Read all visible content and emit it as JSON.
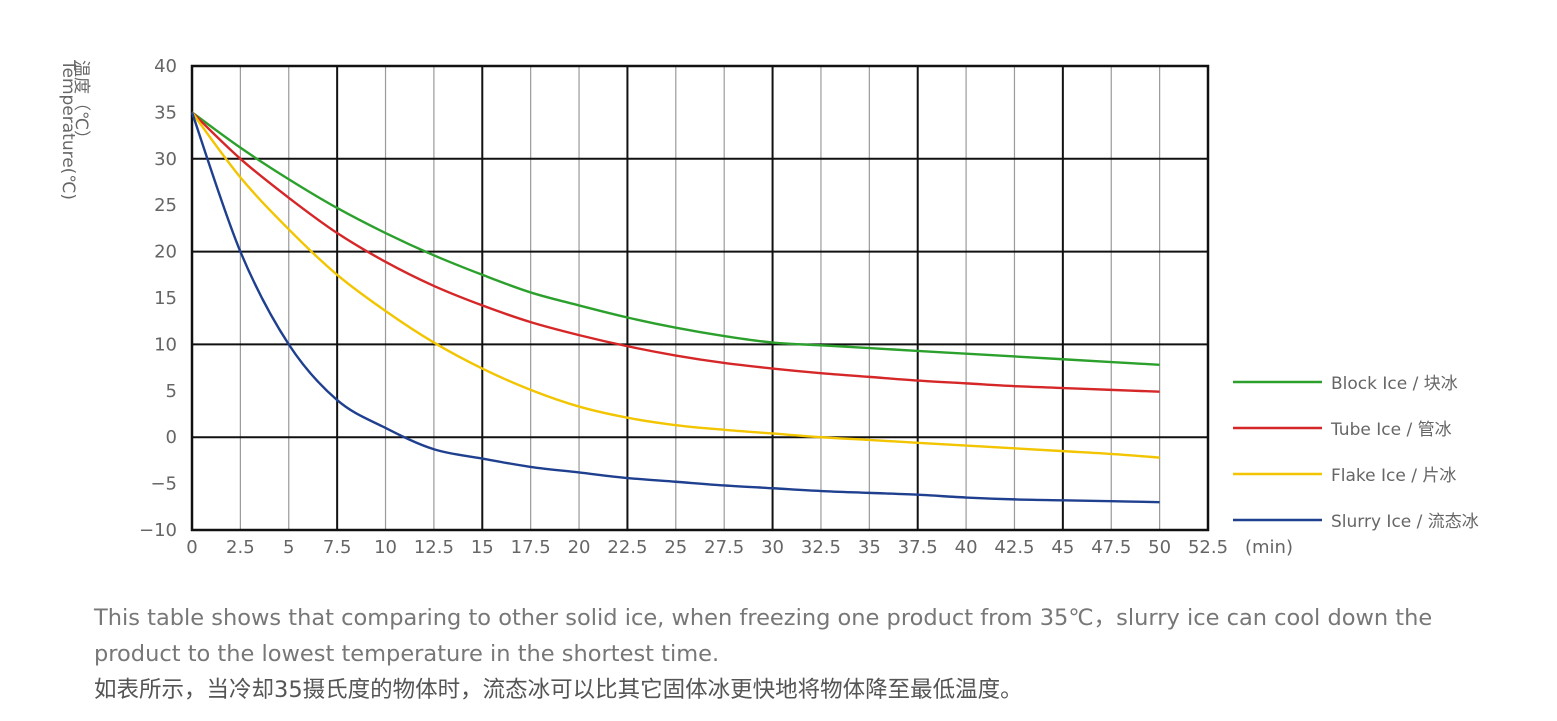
{
  "chart_data": {
    "type": "line",
    "ylabel_zh": "温度（℃）",
    "ylabel_en": "Temperature(℃)",
    "xunit": "(min)",
    "xlim": [
      0,
      52.5
    ],
    "ylim": [
      -10,
      40
    ],
    "x_ticks": [
      "0",
      "2.5",
      "5",
      "7.5",
      "10",
      "12.5",
      "15",
      "17.5",
      "20",
      "22.5",
      "25",
      "27.5",
      "30",
      "32.5",
      "35",
      "37.5",
      "40",
      "42.5",
      "45",
      "47.5",
      "50",
      "52.5"
    ],
    "y_ticks": [
      "40",
      "35",
      "30",
      "25",
      "20",
      "15",
      "10",
      "5",
      "0",
      "−5",
      "−10"
    ],
    "grid": true,
    "legend_position": "right",
    "series": [
      {
        "name": "Block Ice / 块冰",
        "color": "#2ca02c",
        "x": [
          0,
          2.5,
          5,
          7.5,
          10,
          12.5,
          15,
          17.5,
          20,
          22.5,
          25,
          27.5,
          30,
          32.5,
          35,
          37.5,
          40,
          42.5,
          45,
          47.5,
          50
        ],
        "y": [
          35,
          31.2,
          27.8,
          24.7,
          22,
          19.6,
          17.5,
          15.6,
          14.2,
          12.9,
          11.8,
          10.9,
          10.2,
          9.9,
          9.6,
          9.3,
          9.0,
          8.7,
          8.4,
          8.1,
          7.8
        ]
      },
      {
        "name": "Tube Ice / 管冰",
        "color": "#d62728",
        "x": [
          0,
          2.5,
          5,
          7.5,
          10,
          12.5,
          15,
          17.5,
          20,
          22.5,
          25,
          27.5,
          30,
          32.5,
          35,
          37.5,
          40,
          42.5,
          45,
          47.5,
          50
        ],
        "y": [
          35,
          30,
          25.8,
          22,
          18.9,
          16.3,
          14.2,
          12.4,
          11,
          9.8,
          8.8,
          8.0,
          7.4,
          6.9,
          6.5,
          6.1,
          5.8,
          5.5,
          5.3,
          5.1,
          4.9
        ]
      },
      {
        "name": "Flake Ice / 片冰",
        "color": "#f2c500",
        "x": [
          0,
          2.5,
          5,
          7.5,
          10,
          12.5,
          15,
          17.5,
          20,
          22.5,
          25,
          27.5,
          30,
          32.5,
          35,
          37.5,
          40,
          42.5,
          45,
          47.5,
          50
        ],
        "y": [
          35,
          28,
          22.4,
          17.5,
          13.6,
          10.2,
          7.4,
          5.1,
          3.3,
          2.1,
          1.3,
          0.8,
          0.4,
          0.0,
          -0.3,
          -0.6,
          -0.9,
          -1.2,
          -1.5,
          -1.8,
          -2.2
        ]
      },
      {
        "name": "Slurry Ice / 流态冰",
        "color": "#1f3f8f",
        "x": [
          0,
          2.5,
          5,
          7.5,
          10,
          12.5,
          15,
          17.5,
          20,
          22.5,
          25,
          27.5,
          30,
          32.5,
          35,
          37.5,
          40,
          42.5,
          45,
          47.5,
          50
        ],
        "y": [
          35,
          20,
          10,
          4,
          1,
          -1.3,
          -2.3,
          -3.2,
          -3.8,
          -4.4,
          -4.8,
          -5.2,
          -5.5,
          -5.8,
          -6.0,
          -6.2,
          -6.5,
          -6.7,
          -6.8,
          -6.9,
          -7.0
        ]
      }
    ]
  },
  "caption": {
    "en": "This table shows that comparing to other solid ice, when freezing one product from 35℃，slurry ice can cool down the product to the lowest temperature in the shortest time.",
    "zh": "如表所示，当冷却35摄氏度的物体时，流态冰可以比其它固体冰更快地将物体降至最低温度。"
  }
}
